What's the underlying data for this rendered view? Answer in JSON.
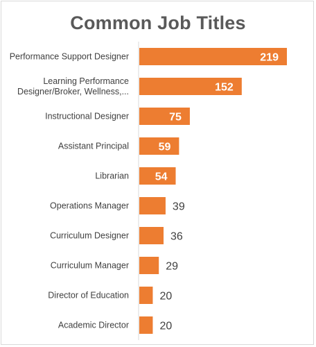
{
  "chart_data": {
    "type": "bar",
    "orientation": "horizontal",
    "title": "Common Job Titles",
    "xlabel": "",
    "ylabel": "",
    "bar_color": "#ed7d31",
    "axis_color": "#d9d9d9",
    "grid": false,
    "legend": "none",
    "xlim": [
      0,
      270
    ],
    "categories": [
      [
        "Performance Support Designer"
      ],
      [
        "Learning Performance",
        "Designer/Broker, Wellness,..."
      ],
      [
        "Instructional Designer"
      ],
      [
        "Assistant Principal"
      ],
      [
        "Librarian"
      ],
      [
        "Operations Manager"
      ],
      [
        "Curriculum Designer"
      ],
      [
        "Curriculum Manager"
      ],
      [
        "Director of Education"
      ],
      [
        "Academic Director"
      ]
    ],
    "values": [
      219,
      152,
      75,
      59,
      54,
      39,
      36,
      29,
      20,
      20
    ]
  }
}
